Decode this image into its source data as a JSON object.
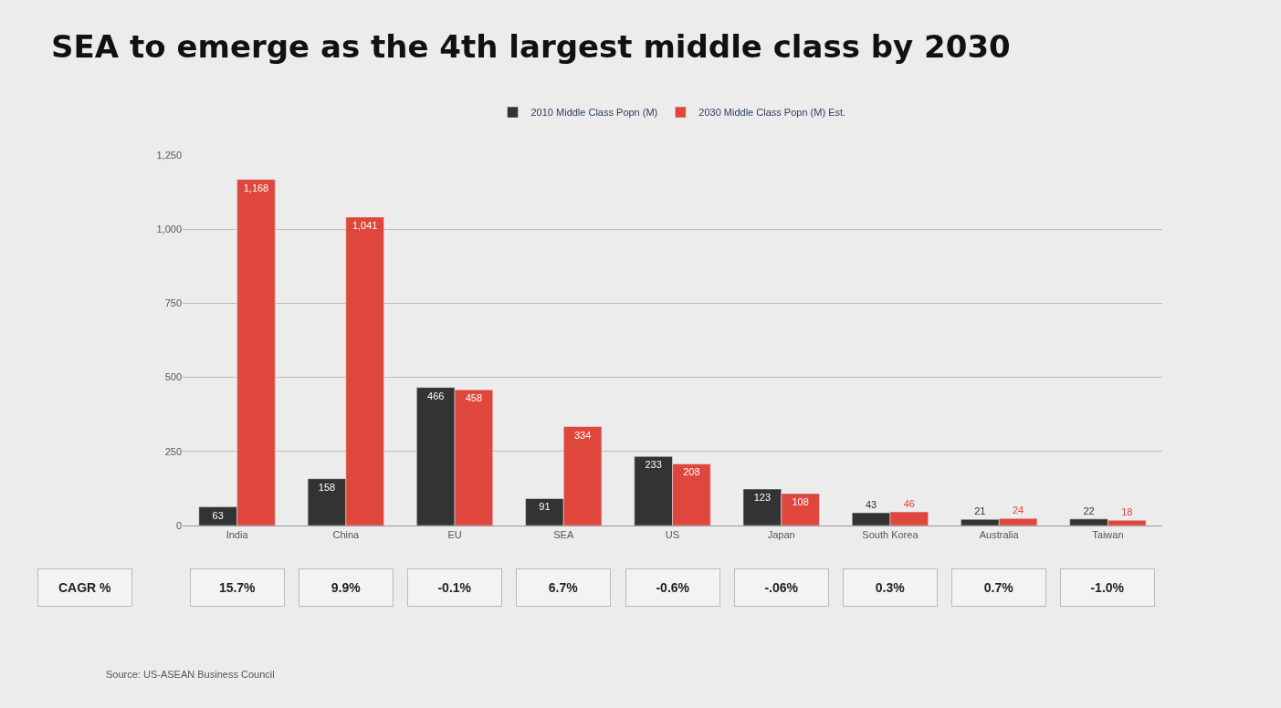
{
  "chart_data": {
    "type": "bar",
    "title": "SEA to emerge as the 4th largest middle class by 2030",
    "categories": [
      "India",
      "China",
      "EU",
      "SEA",
      "US",
      "Japan",
      "South Korea",
      "Australia",
      "Taiwan"
    ],
    "series": [
      {
        "name": "2010 Middle Class Popn (M)",
        "color": "#333333",
        "values": [
          63,
          158,
          466,
          91,
          233,
          123,
          43,
          21,
          22
        ],
        "value_labels": [
          "63",
          "158",
          "466",
          "91",
          "233",
          "123",
          "43",
          "21",
          "22"
        ]
      },
      {
        "name": "2030 Middle Class Popn (M) Est.",
        "color": "#e0473c",
        "values": [
          1168,
          1041,
          458,
          334,
          208,
          108,
          46,
          24,
          18
        ],
        "value_labels": [
          "1,168",
          "1,041",
          "458",
          "334",
          "208",
          "108",
          "46",
          "24",
          "18"
        ]
      }
    ],
    "ylim": [
      0,
      1250
    ],
    "yticks": [
      0,
      {
        "value": 250,
        "label": "250"
      },
      {
        "value": 500,
        "label": "500"
      },
      {
        "value": 750,
        "label": "750"
      },
      {
        "value": 1000,
        "label": "1,000"
      },
      {
        "value": 1250,
        "label": "1,250"
      }
    ],
    "grid": "y",
    "legend": "top",
    "annotations": [
      "CAGR %",
      "15.7%",
      "9.9%",
      "-0.1%",
      "6.7%",
      "-0.6%",
      "-.06%",
      "0.3%",
      "0.7%",
      "-1.0%",
      "Source: US-ASEAN Business Council"
    ]
  }
}
